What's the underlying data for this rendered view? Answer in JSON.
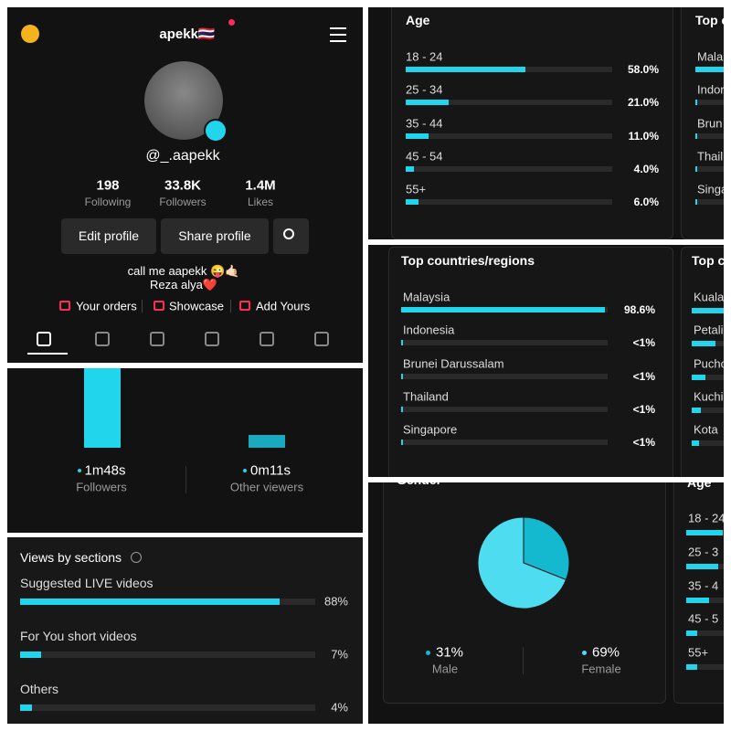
{
  "profile": {
    "username": "apekk🇹🇭",
    "handle": "@_.aapekk",
    "stats": [
      {
        "value": "198",
        "label": "Following"
      },
      {
        "value": "33.8K",
        "label": "Followers"
      },
      {
        "value": "1.4M",
        "label": "Likes"
      }
    ],
    "buttons": [
      "Edit profile",
      "Share profile"
    ],
    "bio": [
      "call me aapekk 😜🤙🏻",
      "Reza alya❤️"
    ],
    "links": [
      "Your orders",
      "Showcase",
      "Add Yours"
    ]
  },
  "watch_time": {
    "items": [
      {
        "value": "1m48s",
        "label": "Followers"
      },
      {
        "value": "0m11s",
        "label": "Other viewers"
      }
    ]
  },
  "sections": {
    "title": "Views by sections",
    "rows": [
      {
        "label": "Suggested LIVE videos",
        "value": 88,
        "value_label": "88%"
      },
      {
        "label": "For You short videos",
        "value": 7,
        "value_label": "7%"
      },
      {
        "label": "Others",
        "value": 4,
        "value_label": "4%"
      }
    ]
  },
  "age": {
    "title": "Age",
    "rows": [
      {
        "label": "18 - 24",
        "value": 58.0,
        "value_label": "58.0%"
      },
      {
        "label": "25 - 34",
        "value": 21.0,
        "value_label": "21.0%"
      },
      {
        "label": "35 - 44",
        "value": 11.0,
        "value_label": "11.0%"
      },
      {
        "label": "45 - 54",
        "value": 4.0,
        "value_label": "4.0%"
      },
      {
        "label": "55+",
        "value": 6.0,
        "value_label": "6.0%"
      }
    ]
  },
  "age_countries_partial": {
    "title": "Top c",
    "rows": [
      "Mala",
      "Indor",
      "Brun",
      "Thail",
      "Singa"
    ]
  },
  "countries": {
    "title": "Top countries/regions",
    "rows": [
      {
        "label": "Malaysia",
        "value": 98.6,
        "value_label": "98.6%"
      },
      {
        "label": "Indonesia",
        "value": 0.5,
        "value_label": "<1%"
      },
      {
        "label": "Brunei Darussalam",
        "value": 0.5,
        "value_label": "<1%"
      },
      {
        "label": "Thailand",
        "value": 0.5,
        "value_label": "<1%"
      },
      {
        "label": "Singapore",
        "value": 0.5,
        "value_label": "<1%"
      }
    ]
  },
  "cities_partial": {
    "title": "Top c",
    "rows": [
      "Kuala",
      "Petali",
      "Puchc",
      "Kuchi",
      "Kota"
    ]
  },
  "gender": {
    "title": "Gender",
    "rows": [
      {
        "label": "Male",
        "value": 31,
        "value_label": "31%"
      },
      {
        "label": "Female",
        "value": 69,
        "value_label": "69%"
      }
    ]
  },
  "age_partial": {
    "title": "Age",
    "rows": [
      "18 - 24",
      "25 - 3",
      "35 - 4",
      "45 - 5",
      "55+"
    ]
  }
}
